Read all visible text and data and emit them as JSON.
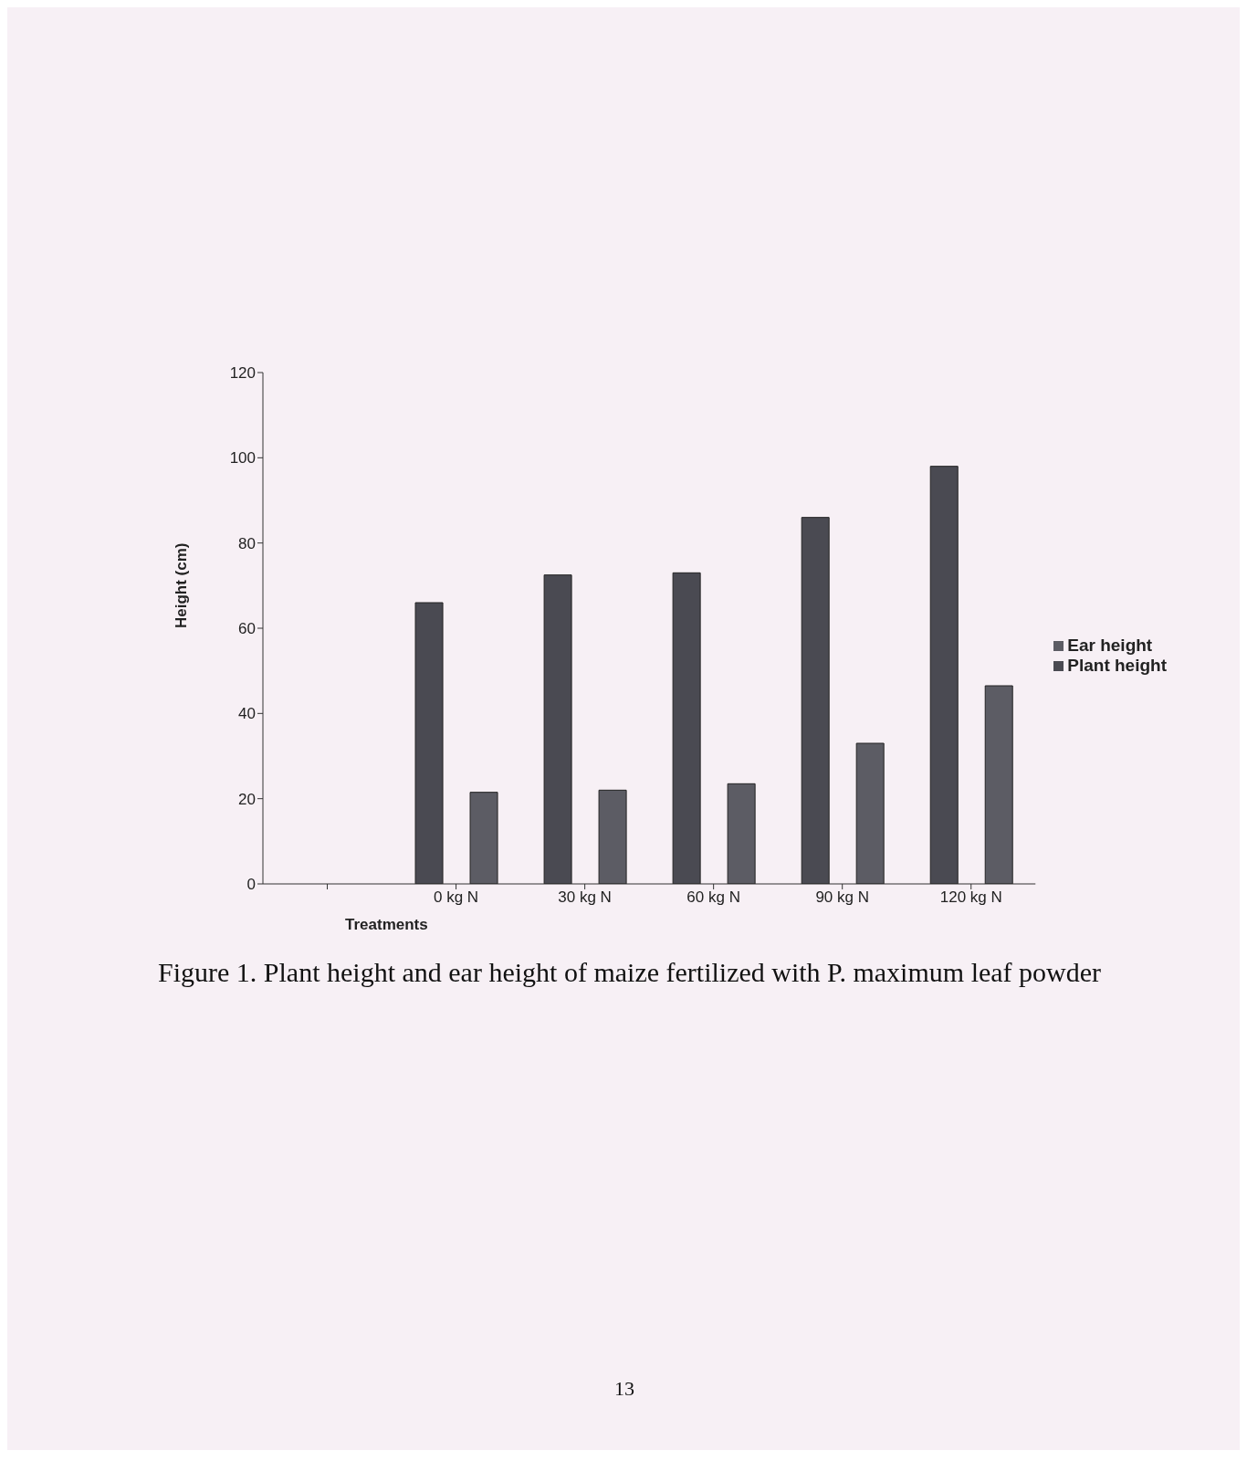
{
  "chart_data": {
    "type": "bar",
    "categories": [
      null,
      "0 kg N",
      "30 kg N",
      "60 kg N",
      "90 kg N",
      "120 kg N"
    ],
    "xlabel": "Treatments",
    "ylabel": "Height (cm)",
    "series": [
      {
        "name": "Plant height",
        "color": "#4a4a52",
        "values": [
          null,
          66,
          72.5,
          73,
          86,
          98
        ]
      },
      {
        "name": "Ear height",
        "color": "#5c5c64",
        "values": [
          null,
          21.5,
          22,
          23.5,
          33,
          46.5
        ]
      }
    ],
    "ylim": [
      0,
      120
    ],
    "yticks": [
      0,
      20,
      40,
      60,
      80,
      100,
      120
    ],
    "grid": false,
    "legend": "right",
    "annotations": [
      "Figure 1. Plant height and ear height of maize fertilized with P. maximum leaf powder",
      "13"
    ]
  }
}
